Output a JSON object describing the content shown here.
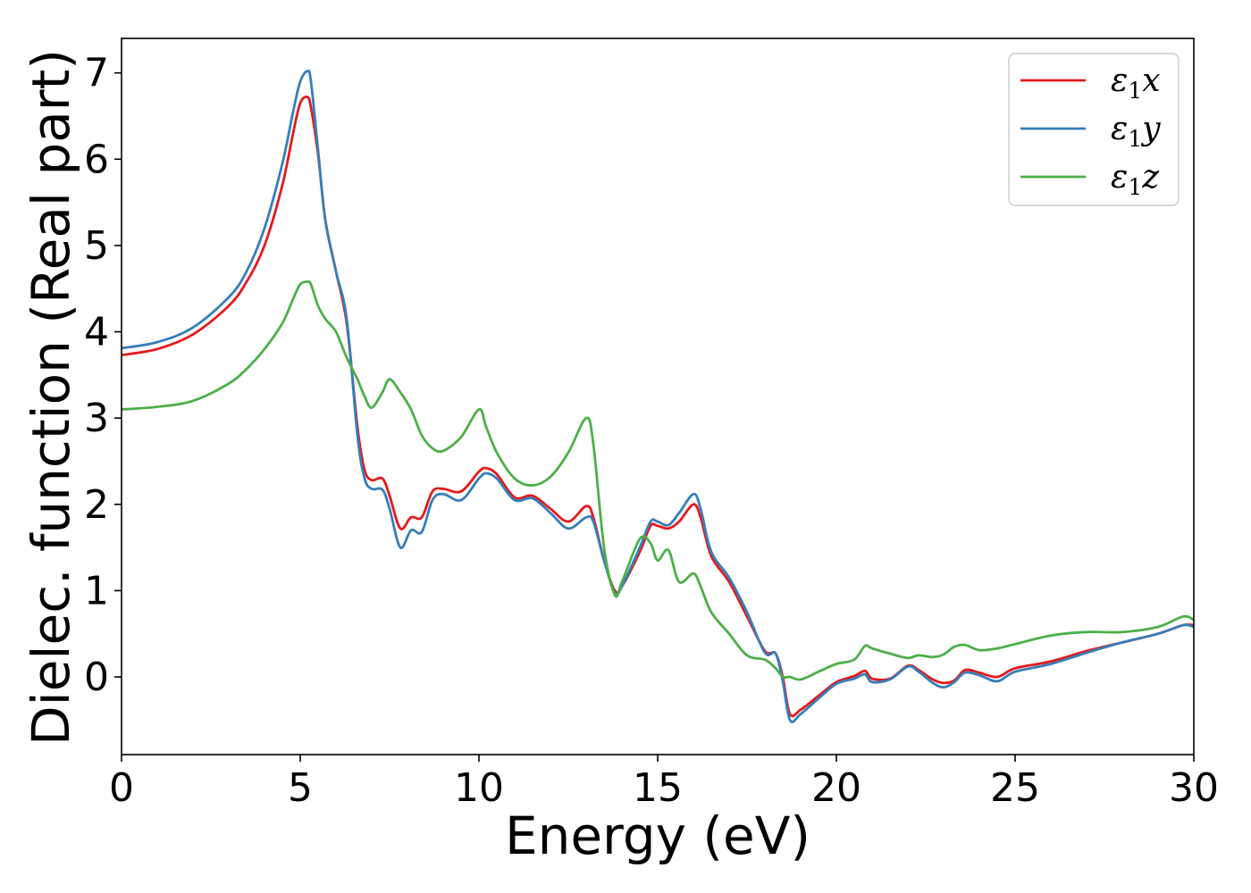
{
  "chart_data": {
    "type": "line",
    "title": "",
    "xlabel": "Energy (eV)",
    "ylabel": "Dielec. function (Real part)",
    "xlim": [
      0,
      30
    ],
    "ylim": [
      -0.9,
      7.4
    ],
    "xticks": [
      0,
      5,
      10,
      15,
      20,
      25,
      30
    ],
    "xtick_labels": [
      "0",
      "5",
      "10",
      "15",
      "20",
      "25",
      "30"
    ],
    "yticks": [
      0,
      1,
      2,
      3,
      4,
      5,
      6,
      7
    ],
    "ytick_labels": [
      "0",
      "1",
      "2",
      "3",
      "4",
      "5",
      "6",
      "7"
    ],
    "grid": false,
    "legend_position": "top-right",
    "series": [
      {
        "name": "ε1x",
        "label_symbol": "ε",
        "label_sub": "1",
        "label_var": "x",
        "color": "#e41a1c",
        "x": [
          0,
          1,
          2,
          3,
          3.5,
          4,
          4.5,
          4.8,
          5.0,
          5.2,
          5.3,
          5.5,
          5.7,
          6.0,
          6.3,
          6.6,
          6.8,
          7.0,
          7.3,
          7.5,
          7.8,
          8.1,
          8.4,
          8.7,
          9.0,
          9.5,
          10.0,
          10.2,
          10.5,
          11.0,
          11.5,
          12.0,
          12.5,
          13.0,
          13.2,
          13.5,
          13.8,
          14.0,
          14.5,
          14.8,
          15.0,
          15.3,
          15.6,
          16.0,
          16.2,
          16.5,
          17.0,
          17.5,
          18.0,
          18.3,
          18.5,
          18.7,
          19.0,
          19.5,
          20.0,
          20.5,
          20.8,
          21.0,
          21.5,
          22.0,
          22.3,
          22.7,
          23.0,
          23.3,
          23.6,
          24.0,
          24.5,
          25.0,
          26.0,
          27.0,
          28.0,
          29.0,
          29.7,
          30.0
        ],
        "y": [
          3.73,
          3.8,
          3.97,
          4.3,
          4.58,
          5.0,
          5.7,
          6.3,
          6.65,
          6.72,
          6.6,
          6.05,
          5.3,
          4.7,
          4.1,
          2.9,
          2.4,
          2.28,
          2.3,
          2.1,
          1.72,
          1.85,
          1.85,
          2.15,
          2.18,
          2.15,
          2.38,
          2.42,
          2.35,
          2.08,
          2.1,
          1.95,
          1.8,
          1.98,
          1.85,
          1.35,
          1.0,
          1.05,
          1.45,
          1.75,
          1.75,
          1.72,
          1.8,
          2.0,
          1.85,
          1.4,
          1.1,
          0.7,
          0.3,
          0.27,
          0.0,
          -0.43,
          -0.38,
          -0.22,
          -0.06,
          0.01,
          0.07,
          -0.02,
          -0.02,
          0.13,
          0.08,
          -0.03,
          -0.07,
          -0.04,
          0.08,
          0.05,
          0.0,
          0.1,
          0.18,
          0.3,
          0.4,
          0.5,
          0.6,
          0.6
        ]
      },
      {
        "name": "ε1y",
        "label_symbol": "ε",
        "label_sub": "1",
        "label_var": "y",
        "color": "#377eb8",
        "x": [
          0,
          1,
          2,
          3,
          3.5,
          4,
          4.5,
          4.8,
          5.0,
          5.2,
          5.3,
          5.5,
          5.7,
          6.0,
          6.3,
          6.6,
          6.8,
          7.0,
          7.3,
          7.5,
          7.8,
          8.1,
          8.4,
          8.7,
          9.0,
          9.5,
          10.0,
          10.2,
          10.5,
          11.0,
          11.5,
          12.0,
          12.5,
          13.0,
          13.2,
          13.5,
          13.8,
          14.0,
          14.5,
          14.8,
          15.0,
          15.3,
          15.6,
          16.0,
          16.2,
          16.5,
          17.0,
          17.5,
          18.0,
          18.3,
          18.5,
          18.7,
          19.0,
          19.5,
          20.0,
          20.5,
          20.8,
          21.0,
          21.5,
          22.0,
          22.3,
          22.7,
          23.0,
          23.3,
          23.6,
          24.0,
          24.5,
          25.0,
          26.0,
          27.0,
          28.0,
          29.0,
          29.7,
          30.0
        ],
        "y": [
          3.81,
          3.88,
          4.05,
          4.4,
          4.7,
          5.2,
          5.95,
          6.55,
          6.9,
          7.02,
          6.9,
          6.1,
          5.3,
          4.7,
          4.15,
          2.8,
          2.3,
          2.18,
          2.17,
          1.95,
          1.5,
          1.7,
          1.68,
          2.05,
          2.12,
          2.05,
          2.3,
          2.36,
          2.3,
          2.05,
          2.07,
          1.9,
          1.72,
          1.85,
          1.8,
          1.35,
          0.97,
          1.05,
          1.5,
          1.8,
          1.8,
          1.76,
          1.9,
          2.12,
          1.95,
          1.45,
          1.15,
          0.75,
          0.28,
          0.27,
          -0.05,
          -0.5,
          -0.43,
          -0.25,
          -0.08,
          -0.02,
          0.03,
          -0.06,
          -0.03,
          0.12,
          0.06,
          -0.07,
          -0.12,
          -0.06,
          0.05,
          0.02,
          -0.05,
          0.06,
          0.15,
          0.28,
          0.4,
          0.5,
          0.6,
          0.58
        ]
      },
      {
        "name": "ε1z",
        "label_symbol": "ε",
        "label_sub": "1",
        "label_var": "z",
        "color": "#4daf4a",
        "x": [
          0,
          1,
          2,
          3,
          3.5,
          4,
          4.5,
          4.8,
          5.0,
          5.2,
          5.3,
          5.5,
          5.7,
          6.0,
          6.3,
          6.6,
          6.8,
          7.0,
          7.3,
          7.5,
          7.8,
          8.1,
          8.4,
          8.7,
          9.0,
          9.5,
          10.0,
          10.2,
          10.5,
          11.0,
          11.5,
          12.0,
          12.5,
          13.0,
          13.2,
          13.5,
          13.8,
          14.0,
          14.5,
          14.8,
          15.0,
          15.3,
          15.6,
          16.0,
          16.2,
          16.5,
          17.0,
          17.5,
          18.0,
          18.3,
          18.5,
          18.7,
          19.0,
          19.5,
          20.0,
          20.5,
          20.8,
          21.0,
          21.5,
          22.0,
          22.3,
          22.7,
          23.0,
          23.3,
          23.6,
          24.0,
          24.5,
          25.0,
          26.0,
          27.0,
          28.0,
          29.0,
          29.7,
          30.0
        ],
        "y": [
          3.1,
          3.13,
          3.2,
          3.4,
          3.57,
          3.8,
          4.1,
          4.38,
          4.55,
          4.58,
          4.55,
          4.3,
          4.15,
          4.0,
          3.7,
          3.45,
          3.25,
          3.12,
          3.3,
          3.45,
          3.3,
          3.1,
          2.8,
          2.65,
          2.62,
          2.78,
          3.1,
          2.9,
          2.6,
          2.3,
          2.22,
          2.32,
          2.6,
          3.0,
          2.7,
          1.5,
          0.95,
          1.1,
          1.6,
          1.55,
          1.35,
          1.47,
          1.1,
          1.2,
          1.05,
          0.75,
          0.5,
          0.25,
          0.2,
          0.1,
          0.0,
          0.0,
          -0.03,
          0.06,
          0.15,
          0.2,
          0.36,
          0.33,
          0.27,
          0.22,
          0.25,
          0.23,
          0.26,
          0.35,
          0.37,
          0.31,
          0.33,
          0.38,
          0.48,
          0.52,
          0.52,
          0.58,
          0.7,
          0.66
        ]
      }
    ]
  }
}
